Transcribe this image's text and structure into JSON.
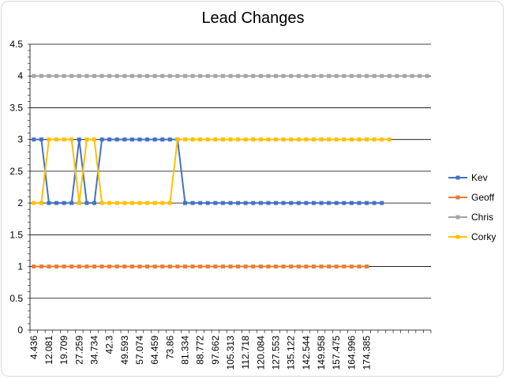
{
  "chart_data": {
    "type": "line",
    "title": "Lead Changes",
    "xlabel": "",
    "ylabel": "",
    "ylim": [
      0,
      4.5
    ],
    "yticks": [
      "0",
      "0.5",
      "1",
      "1.5",
      "2",
      "2.5",
      "3",
      "3.5",
      "4",
      "4.5"
    ],
    "grid": true,
    "legend_position": "right",
    "x_tick_labels": [
      "4.436",
      "12.081",
      "19.709",
      "27.259",
      "34.734",
      "42.3",
      "49.593",
      "57.074",
      "64.459",
      "73.86",
      "81.334",
      "88.772",
      "97.662",
      "105.313",
      "112.718",
      "120.084",
      "127.553",
      "135.122",
      "142.544",
      "149.958",
      "157.475",
      "164.996",
      "174.385"
    ],
    "x_tick_every": 2,
    "series": [
      {
        "name": "Kev",
        "color": "#4472c4",
        "values": [
          3,
          3,
          2,
          2,
          2,
          2,
          3,
          2,
          2,
          3,
          3,
          3,
          3,
          3,
          3,
          3,
          3,
          3,
          3,
          3,
          2,
          2,
          2,
          2,
          2,
          2,
          2,
          2,
          2,
          2,
          2,
          2,
          2,
          2,
          2,
          2,
          2,
          2,
          2,
          2,
          2,
          2,
          2,
          2,
          2,
          2,
          2
        ]
      },
      {
        "name": "Geoff",
        "color": "#ed7d31",
        "values": [
          1,
          1,
          1,
          1,
          1,
          1,
          1,
          1,
          1,
          1,
          1,
          1,
          1,
          1,
          1,
          1,
          1,
          1,
          1,
          1,
          1,
          1,
          1,
          1,
          1,
          1,
          1,
          1,
          1,
          1,
          1,
          1,
          1,
          1,
          1,
          1,
          1,
          1,
          1,
          1,
          1,
          1,
          1,
          1,
          1
        ]
      },
      {
        "name": "Chris",
        "color": "#a5a5a5",
        "values": [
          4,
          4,
          4,
          4,
          4,
          4,
          4,
          4,
          4,
          4,
          4,
          4,
          4,
          4,
          4,
          4,
          4,
          4,
          4,
          4,
          4,
          4,
          4,
          4,
          4,
          4,
          4,
          4,
          4,
          4,
          4,
          4,
          4,
          4,
          4,
          4,
          4,
          4,
          4,
          4,
          4,
          4,
          4,
          4,
          4,
          4,
          4,
          4,
          4,
          4,
          4,
          4,
          4
        ]
      },
      {
        "name": "Corky",
        "color": "#ffc000",
        "values": [
          2,
          2,
          3,
          3,
          3,
          3,
          2,
          3,
          3,
          2,
          2,
          2,
          2,
          2,
          2,
          2,
          2,
          2,
          2,
          3,
          3,
          3,
          3,
          3,
          3,
          3,
          3,
          3,
          3,
          3,
          3,
          3,
          3,
          3,
          3,
          3,
          3,
          3,
          3,
          3,
          3,
          3,
          3,
          3,
          3,
          3,
          3,
          3
        ]
      }
    ]
  }
}
